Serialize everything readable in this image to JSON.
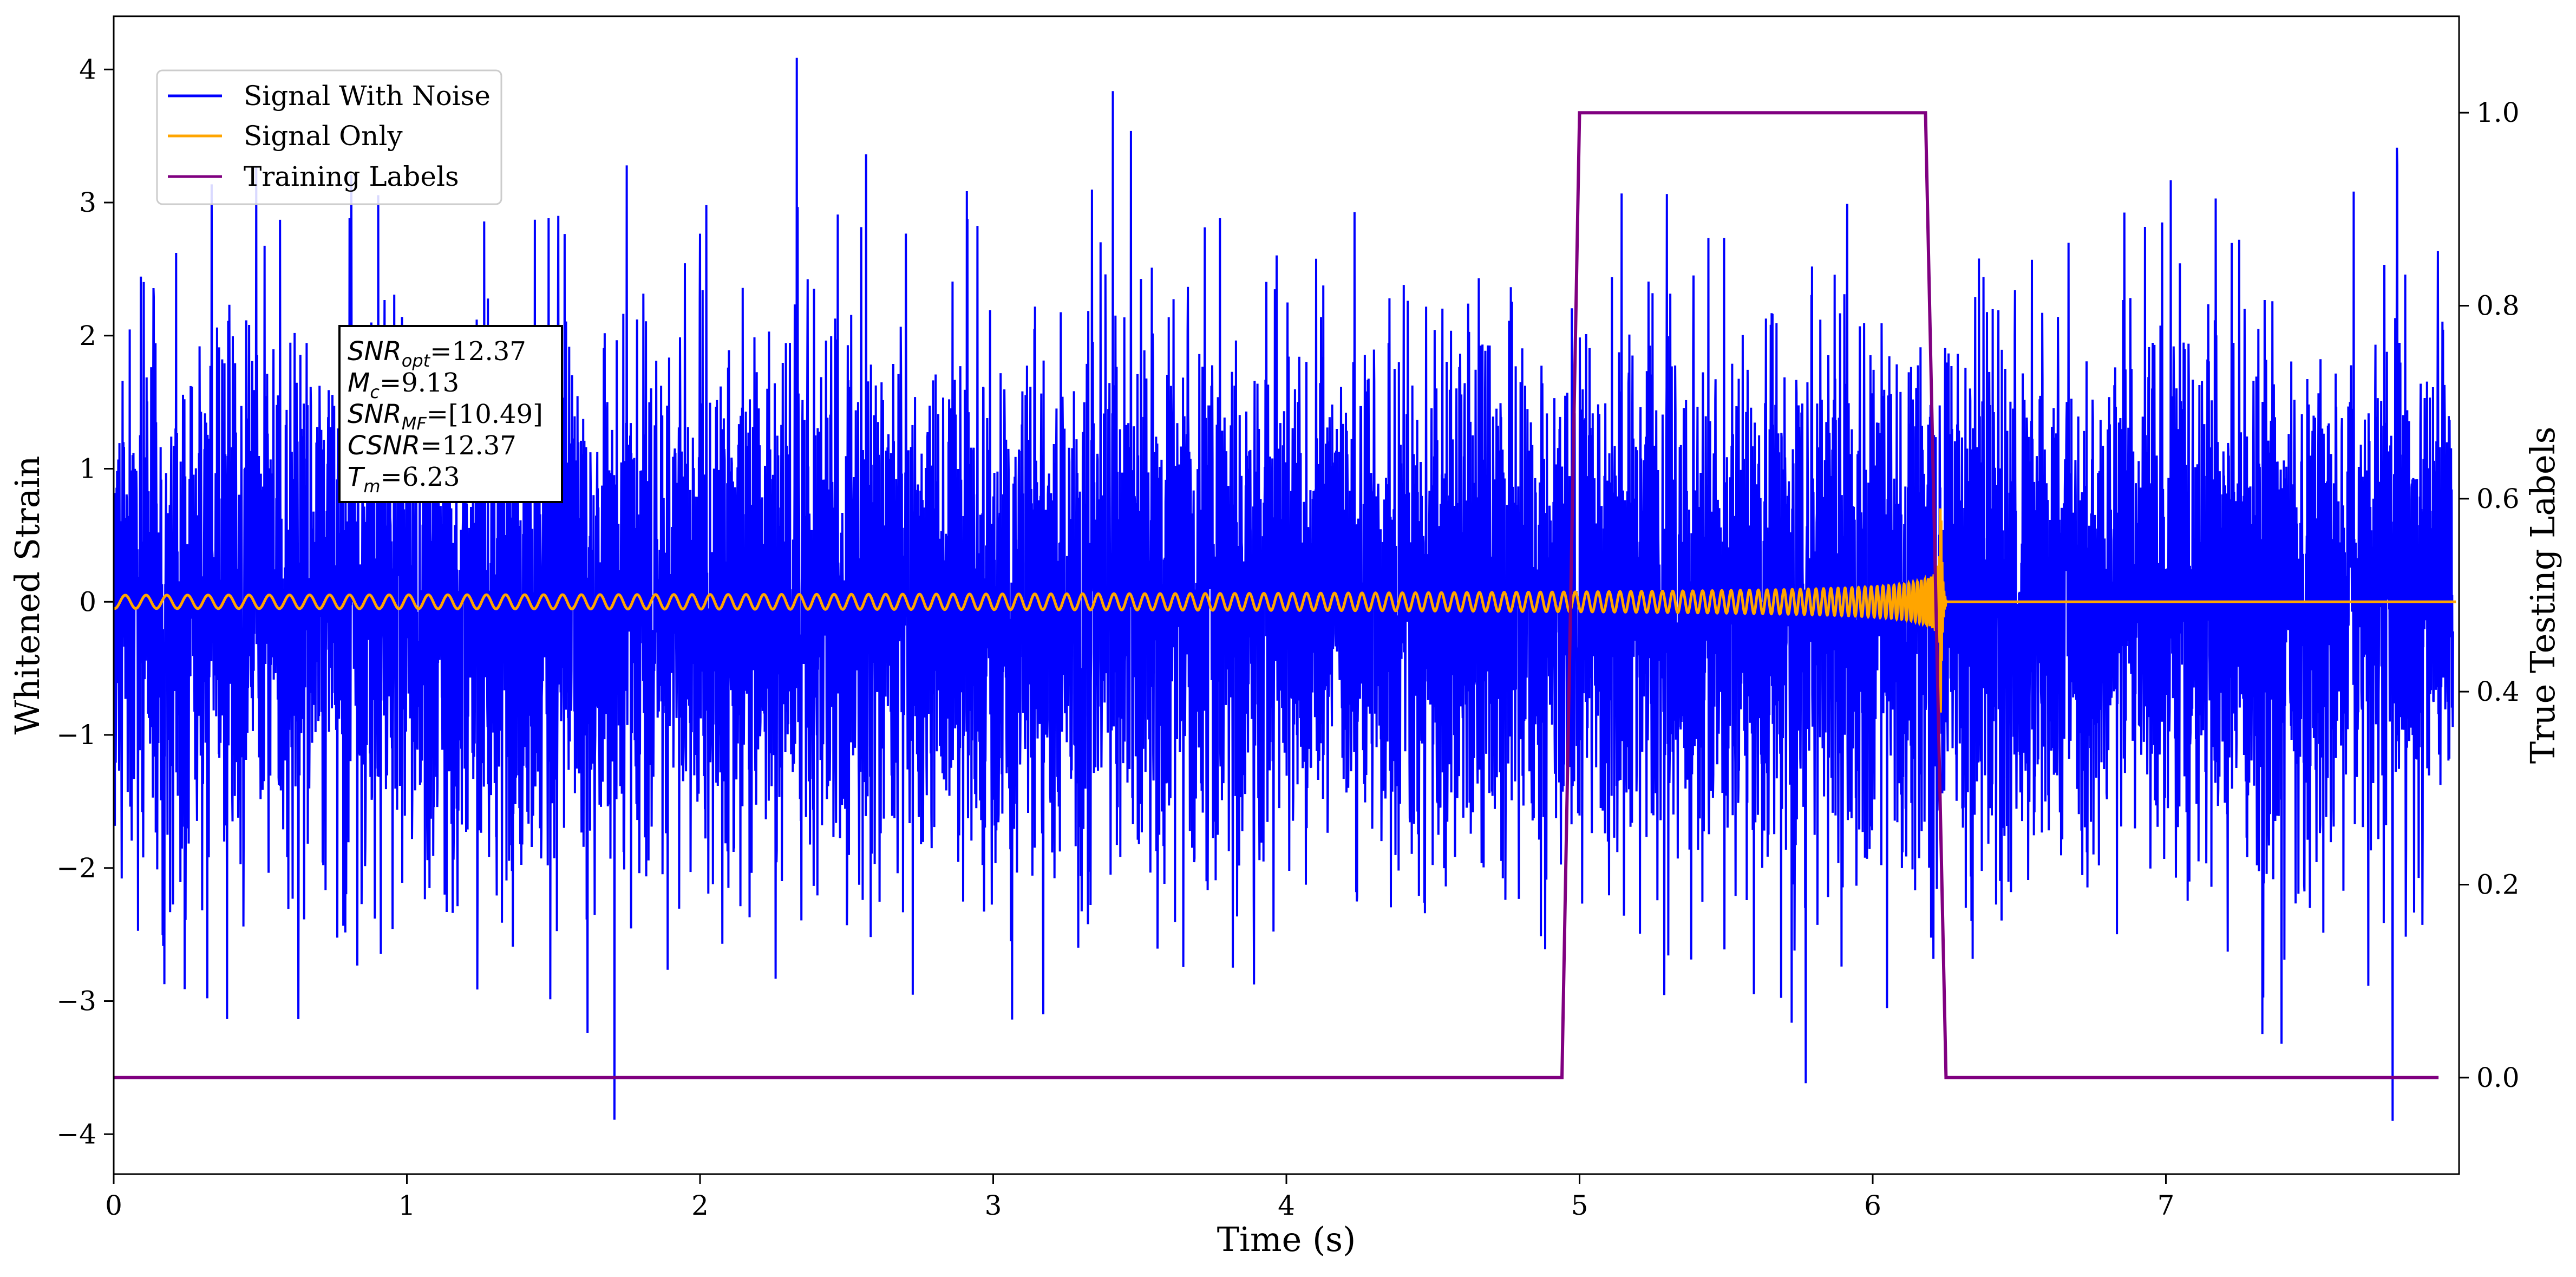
{
  "chart_data": {
    "type": "line",
    "title": "",
    "xlabel": "Time (s)",
    "ylabel_left": "Whitened Strain",
    "ylabel_right": "True Testing Labels",
    "xlim": [
      0,
      8.0
    ],
    "ylim_left": [
      -4.3,
      4.4
    ],
    "ylim_right": [
      -0.1,
      1.1
    ],
    "x_ticks": [
      0,
      1,
      2,
      3,
      4,
      5,
      6,
      7
    ],
    "x_tick_labels": [
      "0",
      "1",
      "2",
      "3",
      "4",
      "5",
      "6",
      "7"
    ],
    "y_left_ticks": [
      -4,
      -3,
      -2,
      -1,
      0,
      1,
      2,
      3,
      4
    ],
    "y_left_tick_labels": [
      "−4",
      "−3",
      "−2",
      "−1",
      "0",
      "1",
      "2",
      "3",
      "4"
    ],
    "y_right_ticks": [
      0.0,
      0.2,
      0.4,
      0.6,
      0.8,
      1.0
    ],
    "y_right_tick_labels": [
      "0.0",
      "0.2",
      "0.4",
      "0.6",
      "0.8",
      "1.0"
    ],
    "grid": false,
    "legend_position": "top-left",
    "series": [
      {
        "name": "Signal With Noise",
        "color": "#0000ff",
        "axis": "left",
        "description_kind": "noise",
        "noise_sigma": 1.0,
        "noise_range": [
          -3.9,
          4.05
        ]
      },
      {
        "name": "Signal Only",
        "color": "#ffa500",
        "axis": "left",
        "description_kind": "chirp",
        "merger_time": 6.23,
        "amplitude_at_start": 0.05,
        "peak_amplitude": 1.35,
        "start_frequency_hz": 14,
        "ringdown_end": 6.25
      },
      {
        "name": "Training Labels",
        "color": "#800080",
        "axis": "right",
        "x": [
          0.0,
          4.94,
          5.0,
          6.18,
          6.25,
          7.93
        ],
        "y": [
          0.0,
          0.0,
          1.0,
          1.0,
          0.0,
          0.0
        ]
      }
    ],
    "annotation": {
      "lines": [
        {
          "sym": "SNR",
          "sub": "opt",
          "val": "=12.37"
        },
        {
          "sym": "M",
          "sub": "c",
          "val": "=9.13"
        },
        {
          "sym": "SNR",
          "sub": "MF",
          "val": "=[10.49]"
        },
        {
          "sym": "CSNR",
          "sub": "",
          "val": "=12.37"
        },
        {
          "sym": "T",
          "sub": "m",
          "val": "=6.23"
        }
      ]
    }
  }
}
